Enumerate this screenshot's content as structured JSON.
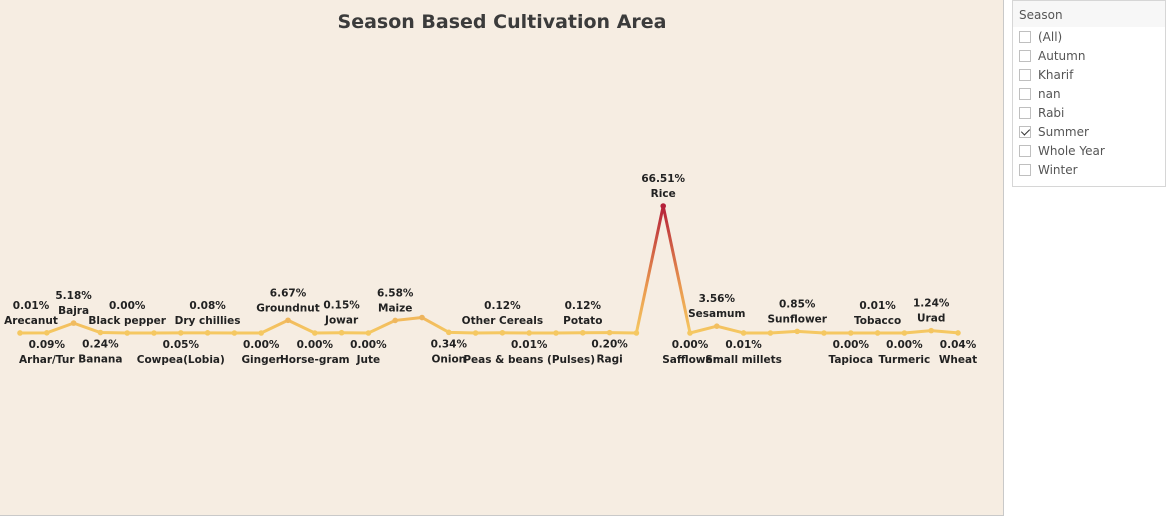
{
  "chart_title": "Season Based Cultivation Area",
  "filter": {
    "title": "Season",
    "options": [
      {
        "label": "(All)",
        "checked": false
      },
      {
        "label": "Autumn",
        "checked": false
      },
      {
        "label": "Kharif",
        "checked": false
      },
      {
        "label": "nan",
        "checked": false
      },
      {
        "label": "Rabi",
        "checked": false
      },
      {
        "label": "Summer",
        "checked": true
      },
      {
        "label": "Whole Year",
        "checked": false
      },
      {
        "label": "Winter",
        "checked": false
      }
    ]
  },
  "chart_data": {
    "type": "line",
    "title": "Season Based Cultivation Area",
    "xlabel": "",
    "ylabel": "",
    "ylim": [
      0,
      66.51
    ],
    "grid": false,
    "color_low": "#f5c862",
    "color_high": "#b5213a",
    "points": [
      {
        "crop": "Arecanut",
        "value": 0.01,
        "label": "0.01%"
      },
      {
        "crop": "Arhar/Tur",
        "value": 0.09,
        "label": "0.09%"
      },
      {
        "crop": "Bajra",
        "value": 5.18,
        "label": "5.18%"
      },
      {
        "crop": "Banana",
        "value": 0.24,
        "label": "0.24%"
      },
      {
        "crop": "Black pepper",
        "value": 0.0,
        "label": "0.00%"
      },
      {
        "crop": "",
        "value": 0.0,
        "label": ""
      },
      {
        "crop": "Cowpea(Lobia)",
        "value": 0.05,
        "label": "0.05%"
      },
      {
        "crop": "Dry chillies",
        "value": 0.08,
        "label": "0.08%"
      },
      {
        "crop": "",
        "value": 0.0,
        "label": ""
      },
      {
        "crop": "Ginger",
        "value": 0.0,
        "label": "0.00%"
      },
      {
        "crop": "Groundnut",
        "value": 6.67,
        "label": "6.67%"
      },
      {
        "crop": "Horse-gram",
        "value": 0.0,
        "label": "0.00%"
      },
      {
        "crop": "Jowar",
        "value": 0.15,
        "label": "0.15%"
      },
      {
        "crop": "Jute",
        "value": 0.0,
        "label": "0.00%"
      },
      {
        "crop": "Maize",
        "value": 6.58,
        "label": "6.58%"
      },
      {
        "crop": "",
        "value": 8.1,
        "label": ""
      },
      {
        "crop": "Onion",
        "value": 0.34,
        "label": "0.34%"
      },
      {
        "crop": "",
        "value": 0.0,
        "label": ""
      },
      {
        "crop": "Other Cereals",
        "value": 0.12,
        "label": "0.12%"
      },
      {
        "crop": "Peas & beans (Pulses)",
        "value": 0.01,
        "label": "0.01%"
      },
      {
        "crop": "",
        "value": 0.0,
        "label": ""
      },
      {
        "crop": "Potato",
        "value": 0.12,
        "label": "0.12%"
      },
      {
        "crop": "Ragi",
        "value": 0.2,
        "label": "0.20%"
      },
      {
        "crop": "",
        "value": 0.0,
        "label": ""
      },
      {
        "crop": "Rice",
        "value": 66.51,
        "label": "66.51%"
      },
      {
        "crop": "Safflower",
        "value": 0.0,
        "label": "0.00%"
      },
      {
        "crop": "Sesamum",
        "value": 3.56,
        "label": "3.56%"
      },
      {
        "crop": "Small millets",
        "value": 0.01,
        "label": "0.01%"
      },
      {
        "crop": "",
        "value": 0.0,
        "label": ""
      },
      {
        "crop": "Sunflower",
        "value": 0.85,
        "label": "0.85%"
      },
      {
        "crop": "",
        "value": 0.0,
        "label": ""
      },
      {
        "crop": "Tapioca",
        "value": 0.0,
        "label": "0.00%"
      },
      {
        "crop": "Tobacco",
        "value": 0.01,
        "label": "0.01%"
      },
      {
        "crop": "Turmeric",
        "value": 0.0,
        "label": "0.00%"
      },
      {
        "crop": "Urad",
        "value": 1.24,
        "label": "1.24%"
      },
      {
        "crop": "Wheat",
        "value": 0.04,
        "label": "0.04%"
      }
    ]
  }
}
